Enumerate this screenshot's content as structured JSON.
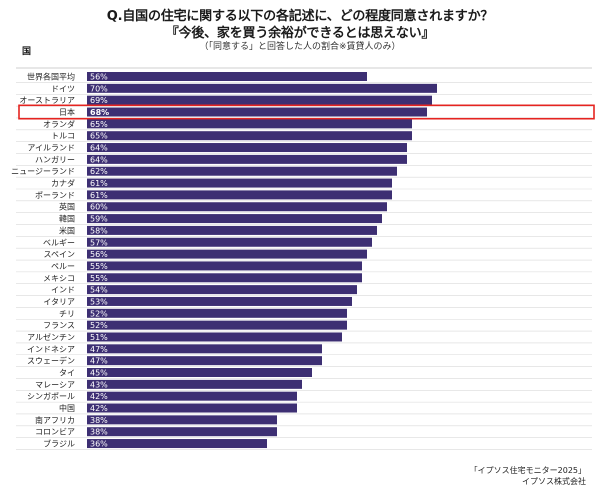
{
  "title": "Q.自国の住宅に関する以下の各記述に、どの程度同意されますか？",
  "subtitle": "『今後、家を買う余裕ができるとは思えない』",
  "note": "（「同意する」と回答した人の割合※賃貸人のみ）",
  "column_header": "国",
  "source_line1": "「イプソス住宅モニター2025」",
  "source_line2": "イプソス株式会社",
  "colors": {
    "bar": "#3d2f73",
    "highlight": "#e52420",
    "grid": "#d9d9d9",
    "label": "#ffffff"
  },
  "chart_data": {
    "type": "bar",
    "orientation": "horizontal",
    "categories": [
      "世界各国平均",
      "ドイツ",
      "オーストラリア",
      "日本",
      "オランダ",
      "トルコ",
      "アイルランド",
      "ハンガリー",
      "ニュージーランド",
      "カナダ",
      "ポーランド",
      "英国",
      "韓国",
      "米国",
      "ベルギー",
      "スペイン",
      "ペルー",
      "メキシコ",
      "インド",
      "イタリア",
      "チリ",
      "フランス",
      "アルゼンチン",
      "インドネシア",
      "スウェーデン",
      "タイ",
      "マレーシア",
      "シンガポール",
      "中国",
      "南アフリカ",
      "コロンビア",
      "ブラジル"
    ],
    "values": [
      56,
      70,
      69,
      68,
      65,
      65,
      64,
      64,
      62,
      61,
      61,
      60,
      59,
      58,
      57,
      56,
      55,
      55,
      54,
      53,
      52,
      52,
      51,
      47,
      47,
      45,
      43,
      42,
      42,
      38,
      38,
      36
    ],
    "value_labels": [
      "56%",
      "70%",
      "69%",
      "68%",
      "65%",
      "65%",
      "64%",
      "64%",
      "62%",
      "61%",
      "61%",
      "60%",
      "59%",
      "58%",
      "57%",
      "56%",
      "55%",
      "55%",
      "54%",
      "53%",
      "52%",
      "52%",
      "51%",
      "47%",
      "47%",
      "45%",
      "43%",
      "42%",
      "42%",
      "38%",
      "38%",
      "36%"
    ],
    "highlighted": "日本",
    "xlim": [
      0,
      100
    ],
    "grid": true
  }
}
